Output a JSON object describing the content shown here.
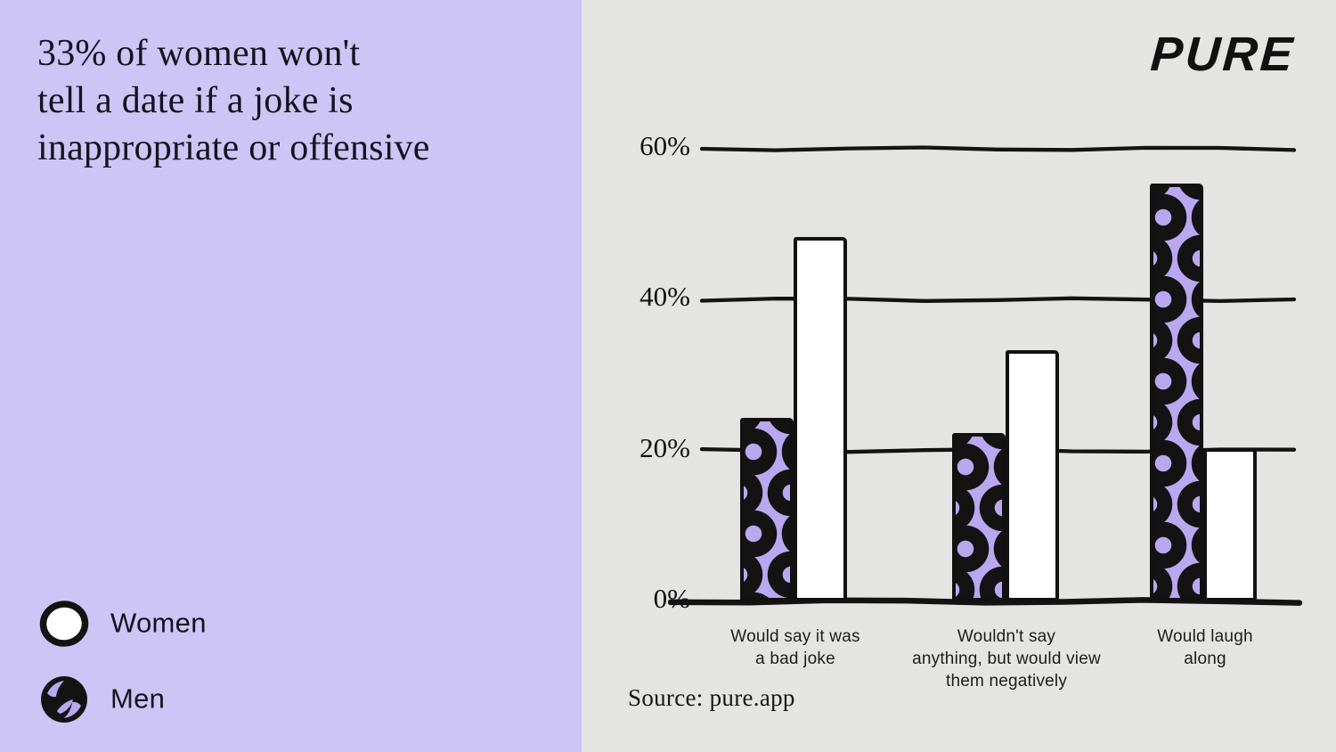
{
  "left_panel": {
    "headline": "33% of women won't\ntell a date if a joke is\ninappropriate or offensive",
    "legend": {
      "items": [
        {
          "label": "Women",
          "swatch": "white-circle"
        },
        {
          "label": "Men",
          "swatch": "black-circle-purple-swirl"
        }
      ]
    }
  },
  "right_panel": {
    "logo_text": "PURE",
    "source_text": "Source: pure.app"
  },
  "chart_data": {
    "type": "bar",
    "title": "33% of women won't tell a date if a joke is inappropriate or offensive",
    "categories": [
      "Would say it was\na bad joke",
      "Wouldn't say\nanything, but would view\nthem negatively",
      "Would laugh along"
    ],
    "series": [
      {
        "name": "Men",
        "style": "purple-donut-pattern",
        "values": [
          24,
          22,
          55
        ]
      },
      {
        "name": "Women",
        "style": "white",
        "values": [
          48,
          33,
          20
        ]
      }
    ],
    "yticks": [
      60,
      40,
      20,
      0
    ],
    "ytick_labels": [
      "60%",
      "40%",
      "20%",
      "0%"
    ],
    "ylim": [
      0,
      63
    ],
    "grid": "horizontal-handdrawn",
    "legend_position": "bottom-left",
    "colors": {
      "bar_purple": "#b9a8ef",
      "bar_white": "#ffffff",
      "ink_black": "#131313",
      "left_panel_bg": "#cdc5f5",
      "right_panel_bg": "#e4e4e3"
    }
  }
}
